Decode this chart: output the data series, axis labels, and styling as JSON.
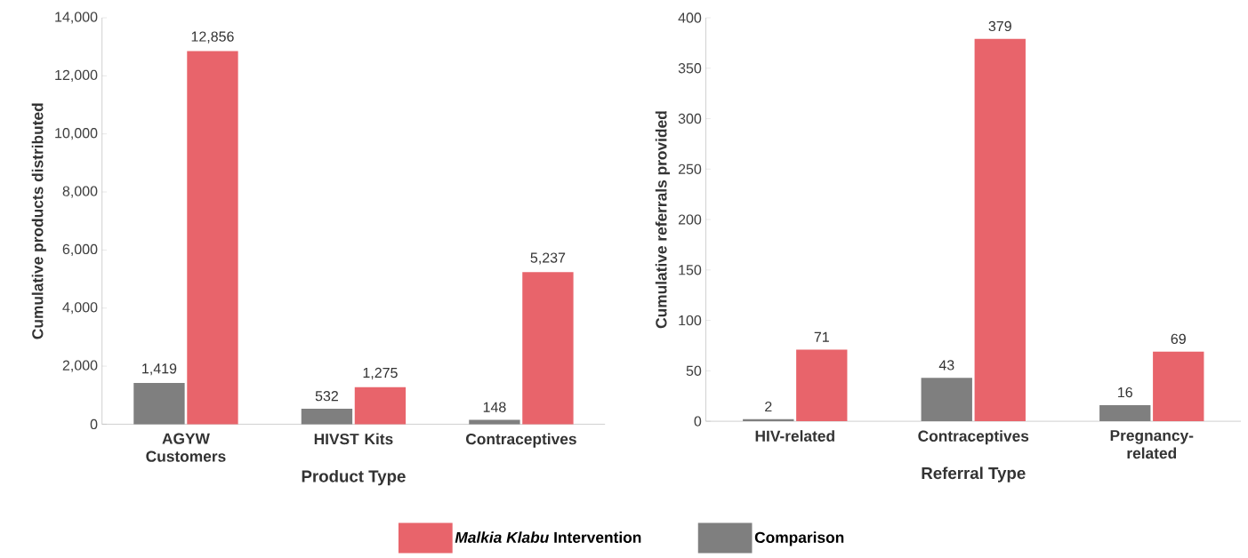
{
  "chart_data": [
    {
      "type": "bar",
      "xlabel": "Product Type",
      "ylabel": "Cumulative products distributed",
      "categories": [
        "AGYW Customers",
        "HIVST Kits",
        "Contraceptives"
      ],
      "series": [
        {
          "name": "Comparison",
          "color": "#7f7f7f",
          "values": [
            1419,
            532,
            148
          ],
          "value_labels": [
            "1,419",
            "532",
            "148"
          ]
        },
        {
          "name": "*Malkia Klabu* Intervention",
          "color": "#e8646b",
          "values": [
            12856,
            1275,
            5237
          ],
          "value_labels": [
            "12,856",
            "1,275",
            "5,237"
          ]
        }
      ],
      "ylim": [
        0,
        14000
      ],
      "yticks": [
        0,
        {
          "value": 2000,
          "label": "2,000"
        },
        {
          "value": 4000,
          "label": "4,000"
        },
        {
          "value": 6000,
          "label": "6,000"
        },
        {
          "value": 8000,
          "label": "8,000"
        },
        {
          "value": 10000,
          "label": "10,000"
        },
        {
          "value": 12000,
          "label": "12,000"
        },
        {
          "value": 14000,
          "label": "14,000"
        }
      ],
      "legend": "bottom"
    },
    {
      "type": "bar",
      "xlabel": "Referral Type",
      "ylabel": "Cumulative referrals provided",
      "categories": [
        "HIV-related",
        "Contraceptives",
        "Pregnancy-related"
      ],
      "series": [
        {
          "color": "#7f7f7f",
          "values": [
            2,
            43,
            16
          ],
          "value_labels": [
            "2",
            "43",
            "16"
          ]
        },
        {
          "color": "#e8646b",
          "values": [
            71,
            379,
            69
          ],
          "value_labels": [
            "71",
            "379",
            "69"
          ]
        }
      ],
      "ylim": [
        0,
        400
      ],
      "yticks": [
        0,
        50,
        100,
        150,
        200,
        250,
        300,
        350,
        400
      ]
    }
  ]
}
